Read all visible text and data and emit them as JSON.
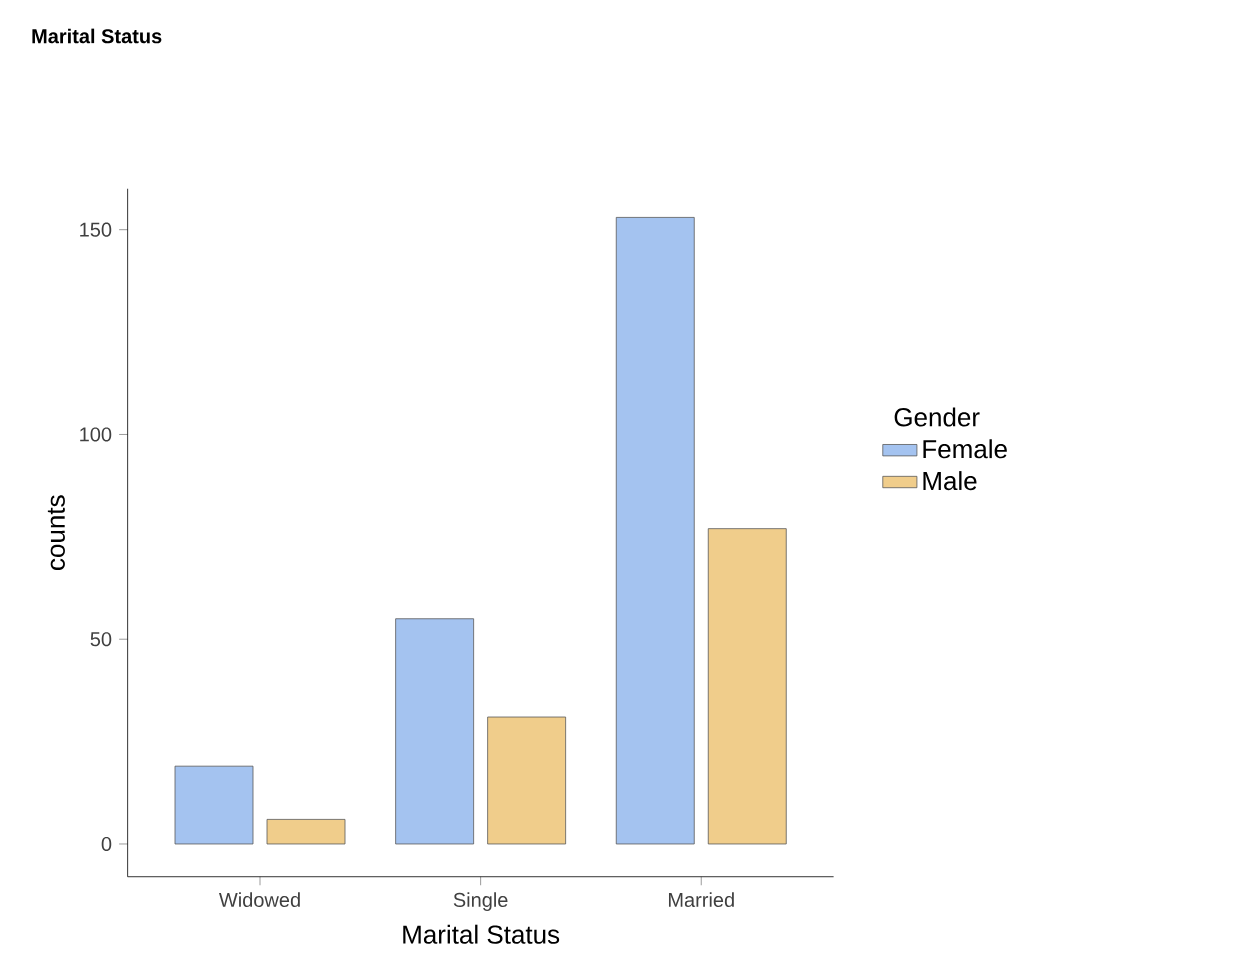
{
  "chart_data": {
    "type": "bar",
    "title": "Marital Status",
    "xlabel": "Marital Status",
    "ylabel": "counts",
    "legend_title": "Gender",
    "categories": [
      "Widowed",
      "Single",
      "Married"
    ],
    "series": [
      {
        "name": "Female",
        "color": "#a4c3f0",
        "values": [
          19,
          55,
          153
        ]
      },
      {
        "name": "Male",
        "color": "#f0cd8b",
        "values": [
          6,
          31,
          77
        ]
      }
    ],
    "ylim": [
      -8,
      160
    ],
    "yticks": [
      0,
      50,
      100,
      150
    ],
    "grid": false,
    "legend": "right"
  }
}
